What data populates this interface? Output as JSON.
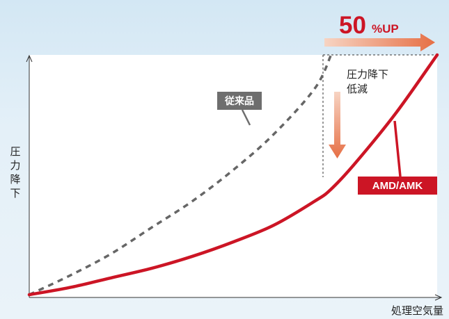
{
  "chart_data": {
    "type": "line",
    "title": "",
    "xlabel": "処理空気量",
    "ylabel": "圧力降下",
    "xlim": [
      0,
      1
    ],
    "ylim": [
      0,
      1
    ],
    "grid": false,
    "series": [
      {
        "name": "従来品",
        "style": "dashed",
        "color": "#666666",
        "x": [
          0,
          0.1,
          0.2,
          0.3,
          0.4,
          0.5,
          0.6,
          0.7,
          0.74
        ],
        "y": [
          0,
          0.08,
          0.17,
          0.28,
          0.39,
          0.52,
          0.67,
          0.86,
          1.0
        ]
      },
      {
        "name": "AMD/AMK",
        "style": "solid",
        "color": "#cc1525",
        "x": [
          0,
          0.1,
          0.2,
          0.3,
          0.4,
          0.5,
          0.6,
          0.7,
          0.74,
          0.8,
          0.9,
          1.0
        ],
        "y": [
          0,
          0.03,
          0.07,
          0.11,
          0.16,
          0.22,
          0.29,
          0.39,
          0.44,
          0.55,
          0.76,
          1.0
        ]
      }
    ],
    "annotations": {
      "improvement_value": "50",
      "improvement_unit": "%UP",
      "pressure_note_line1": "圧力降下",
      "pressure_note_line2": "低減"
    },
    "colors": {
      "up_arrow": "#e8875e",
      "down_arrow": "#e8875e",
      "improvement_text": "#cc1525"
    }
  }
}
